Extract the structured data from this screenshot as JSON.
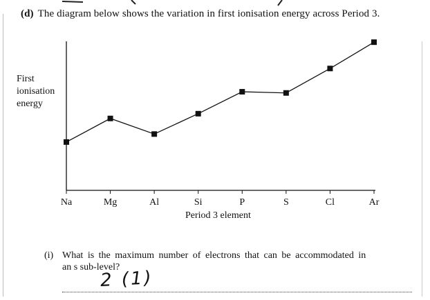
{
  "question_d": {
    "label": "(d)",
    "text": "The diagram below shows the variation in first ionisation energy across Period 3."
  },
  "chart_data": {
    "type": "line",
    "ylabel_lines": [
      "First",
      "ionisation",
      "energy"
    ],
    "xlabel": "Period 3 element",
    "categories": [
      "Na",
      "Mg",
      "Al",
      "Si",
      "P",
      "S",
      "Cl",
      "Ar"
    ],
    "values": [
      496,
      738,
      578,
      787,
      1012,
      1000,
      1251,
      1521
    ],
    "ylim": [
      0,
      1600
    ],
    "grid": false,
    "marker": "square",
    "color": "#111111"
  },
  "question_i": {
    "label": "(i)",
    "line1": "What is the maximum number of electrons that can be accommodated in",
    "line2": "an s sub-level?"
  },
  "answer": {
    "handwritten": "2 (1)"
  }
}
